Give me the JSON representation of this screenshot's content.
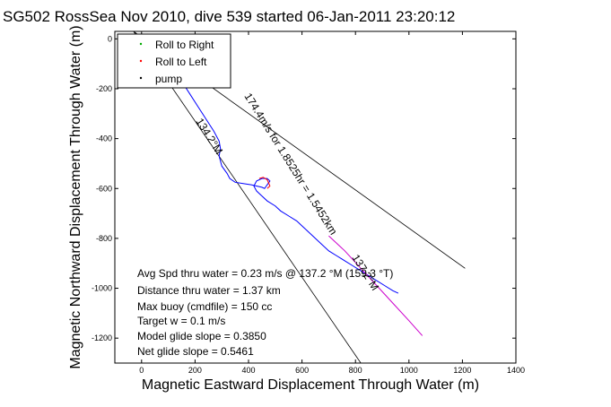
{
  "chart_data": {
    "type": "line",
    "title": "SG502 RossSea Nov 2010, dive 539 started 06-Jan-2011 23:20:12",
    "xlabel": "Magnetic Eastward Displacement Through Water (m)",
    "ylabel": "Magnetic Northward Displacement Through Water (m)",
    "xlim": [
      -100,
      1400
    ],
    "ylim": [
      -1300,
      30
    ],
    "xticks": [
      0,
      200,
      400,
      600,
      800,
      1000,
      1200,
      1400
    ],
    "yticks": [
      -1200,
      -1000,
      -800,
      -600,
      -400,
      -200,
      0
    ],
    "grid": false,
    "legend": {
      "placement": "top-left",
      "entries": [
        {
          "label": "Roll to Right",
          "color": "#00aa00",
          "marker": "dot"
        },
        {
          "label": "Roll to Left",
          "color": "#ff0000",
          "marker": "dot"
        },
        {
          "label": "pump",
          "color": "#000000",
          "marker": "dot"
        }
      ]
    },
    "series": [
      {
        "color": "#0000ff",
        "x": [
          20,
          40,
          60,
          90,
          120,
          150,
          180,
          210,
          240,
          270,
          290,
          295,
          290,
          300,
          320,
          330,
          350,
          380,
          410,
          430,
          450,
          460,
          470,
          480,
          470,
          450,
          430,
          420,
          430,
          450,
          470,
          500,
          520,
          550,
          580,
          610,
          640,
          670,
          700,
          730,
          760,
          790,
          820,
          850,
          880,
          910,
          940,
          960
        ],
        "y": [
          20,
          -10,
          -40,
          -80,
          -120,
          -170,
          -220,
          -270,
          -320,
          -370,
          -410,
          -440,
          -470,
          -510,
          -540,
          -560,
          -575,
          -580,
          -585,
          -590,
          -595,
          -600,
          -585,
          -570,
          -560,
          -560,
          -570,
          -590,
          -610,
          -630,
          -650,
          -670,
          -690,
          -710,
          -730,
          -760,
          -790,
          -820,
          -850,
          -870,
          -890,
          -910,
          -930,
          -950,
          -970,
          -990,
          -1010,
          -1020
        ]
      },
      {
        "color": "#ff0000",
        "x": [
          20,
          35,
          45,
          40,
          25
        ],
        "y": [
          20,
          10,
          -5,
          -15,
          -10
        ]
      },
      {
        "color": "#ff0000",
        "x": [
          440,
          455,
          470,
          480,
          470
        ],
        "y": [
          -560,
          -555,
          -565,
          -590,
          -600
        ]
      },
      {
        "color": "#cc00cc",
        "x": [
          700,
          760,
          820,
          880,
          940,
          1000,
          1050
        ],
        "y": [
          -790,
          -850,
          -920,
          -990,
          -1060,
          -1130,
          -1190
        ]
      }
    ],
    "bounds": [
      {
        "color": "#000000",
        "x": [
          -30,
          1210
        ],
        "y": [
          30,
          -920
        ]
      },
      {
        "color": "#000000",
        "x": [
          -30,
          820
        ],
        "y": [
          30,
          -1300
        ]
      }
    ],
    "annotations": [
      {
        "text": "134.2°M"
      },
      {
        "text": "174.4m/s for 1.8525hr = 1.5452km"
      },
      {
        "text": "137.2°M"
      }
    ],
    "stats": [
      "Avg Spd thru water =  0.23 m/s @ 137.2 °M (159.3 °T)",
      "Distance thru water =  1.37 km",
      "Max buoy (cmdfile) = 150 cc",
      "Target w = 0.1 m/s",
      "Model glide slope = 0.3850",
      "Net glide slope = 0.5461"
    ]
  }
}
